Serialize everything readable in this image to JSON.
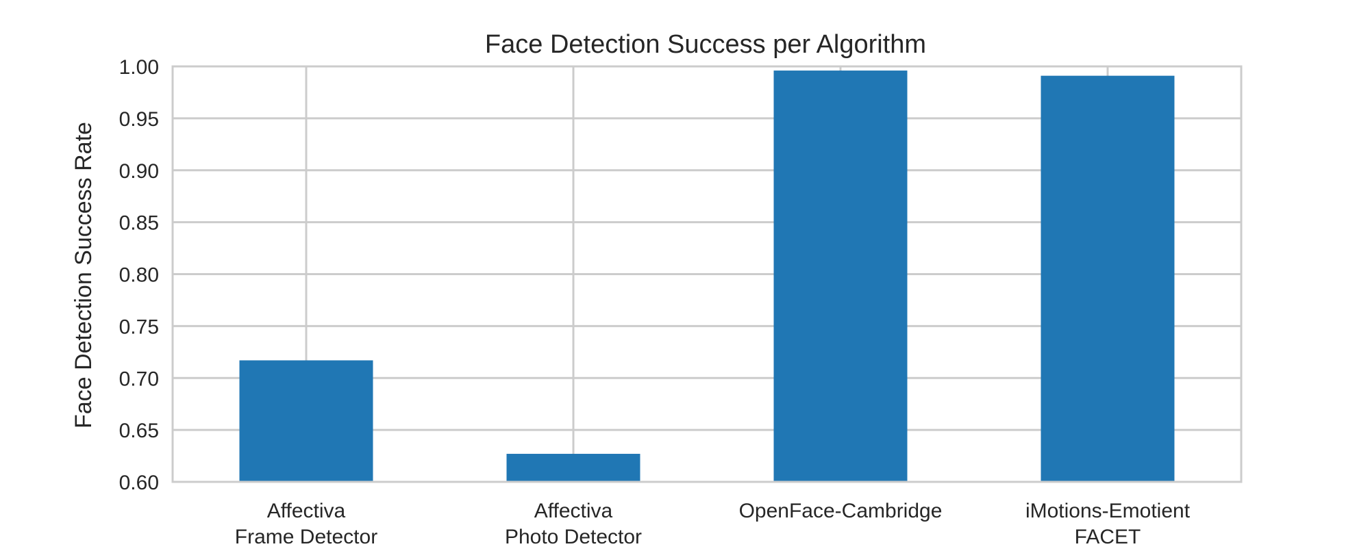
{
  "chart_data": {
    "type": "bar",
    "title": "Face Detection Success per Algorithm",
    "xlabel": "",
    "ylabel": "Face Detection Success Rate",
    "categories": [
      [
        "Affectiva",
        "Frame Detector"
      ],
      [
        "Affectiva",
        "Photo Detector"
      ],
      [
        "OpenFace-Cambridge"
      ],
      [
        "iMotions-Emotient",
        "FACET"
      ]
    ],
    "values": [
      0.717,
      0.627,
      0.996,
      0.991
    ],
    "ylim": [
      0.6,
      1.0
    ],
    "yticks": [
      "0.60",
      "0.65",
      "0.70",
      "0.75",
      "0.80",
      "0.85",
      "0.90",
      "0.95",
      "1.00"
    ],
    "grid": true,
    "colors": {
      "bar": "#2077b4",
      "grid": "#cccccc",
      "frame": "#cccccc"
    }
  }
}
